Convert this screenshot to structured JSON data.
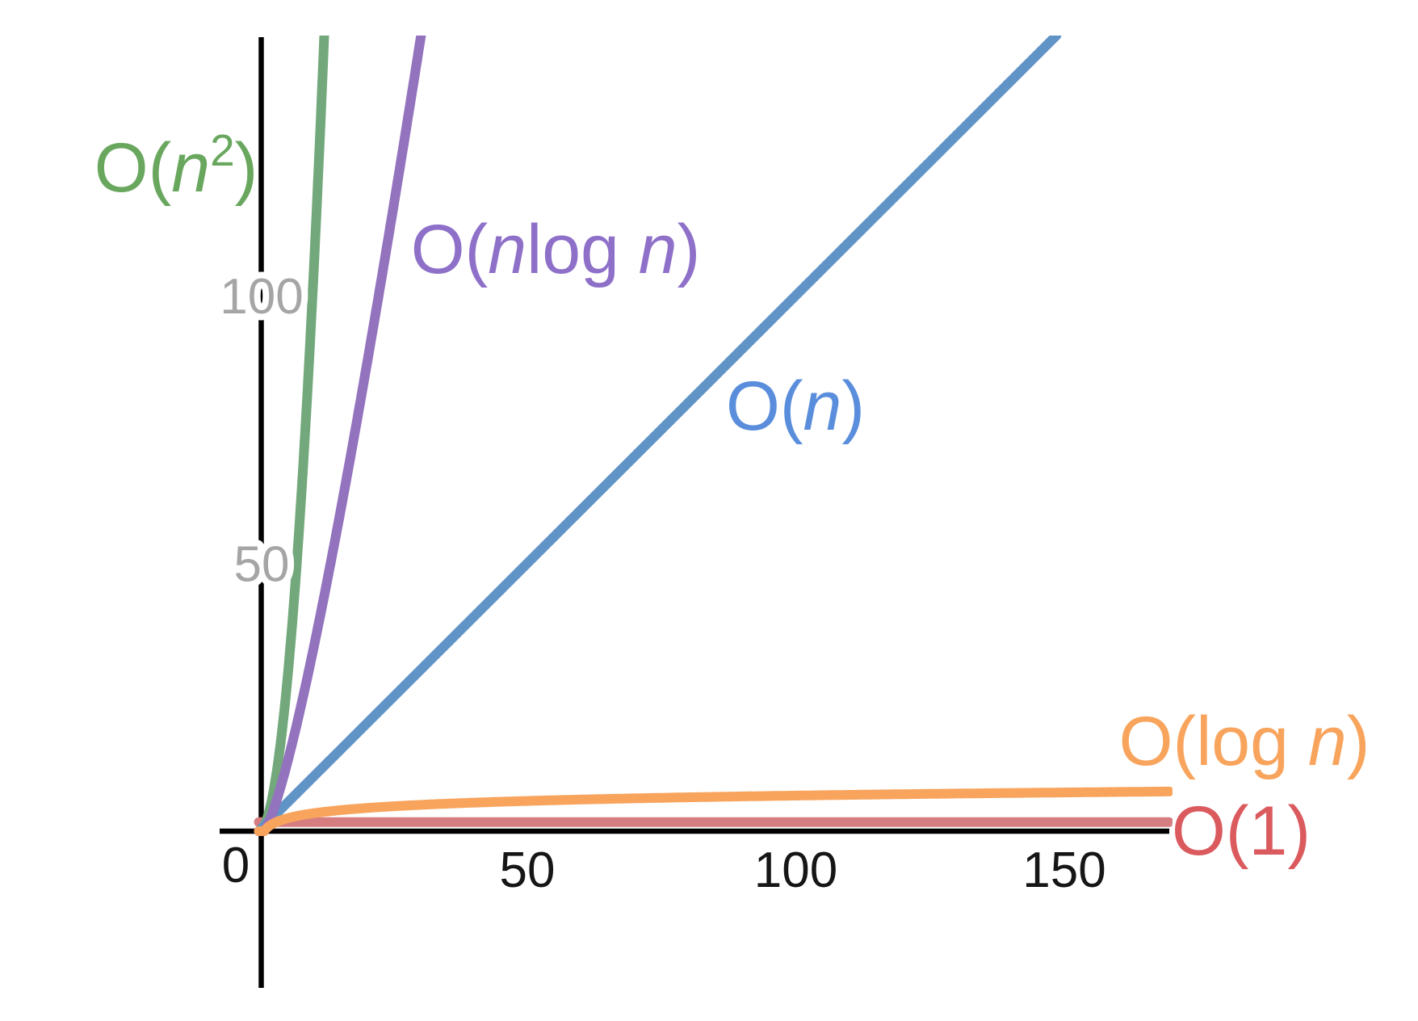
{
  "chart_data": {
    "type": "line",
    "title": "",
    "subtitle": "",
    "xlabel": "",
    "ylabel": "",
    "grid": false,
    "legend_position": "inline-curve-labels",
    "background_color": "#ffffff",
    "axis_color": "#000000",
    "x_tick_color": "#161616",
    "y_tick_color": "#a5a5a5",
    "x_range": [
      0,
      169.5
    ],
    "y_range": [
      0,
      148
    ],
    "x_ticks": [
      {
        "value": 0,
        "label": "0"
      },
      {
        "value": 50,
        "label": "50"
      },
      {
        "value": 100,
        "label": "100"
      },
      {
        "value": 150,
        "label": "150"
      }
    ],
    "y_ticks": [
      {
        "value": 50,
        "label": "50"
      },
      {
        "value": 100,
        "label": "100"
      }
    ],
    "series": [
      {
        "id": "n2",
        "label": "O(n²)",
        "formula": "n^2",
        "line_color": "#72A87B",
        "label_color": "#69A75F",
        "label_parts": [
          {
            "t": "O("
          },
          {
            "t": "n",
            "italic": true
          },
          {
            "t": "2",
            "sup": true
          },
          {
            "t": ")"
          }
        ],
        "points": {
          "x": [
            0,
            2,
            4,
            6,
            8,
            10,
            12.2
          ],
          "y": [
            0,
            4,
            16,
            36,
            64,
            100,
            148
          ]
        }
      },
      {
        "id": "nlogn",
        "label": "O(nlog n)",
        "formula": "n*log2(n)",
        "line_color": "#9372BE",
        "label_color": "#8E70C9",
        "label_parts": [
          {
            "t": "O("
          },
          {
            "t": "n",
            "italic": true
          },
          {
            "t": "log "
          },
          {
            "t": "n",
            "italic": true
          },
          {
            "t": ")"
          }
        ],
        "points": {
          "x": [
            0,
            5,
            10,
            15,
            20,
            25,
            30.2
          ],
          "y": [
            0,
            11.6,
            33.2,
            58.6,
            86.4,
            116.1,
            148
          ]
        }
      },
      {
        "id": "n",
        "label": "O(n)",
        "formula": "n",
        "line_color": "#6094C7",
        "label_color": "#5A8EDC",
        "label_parts": [
          {
            "t": "O("
          },
          {
            "t": "n",
            "italic": true
          },
          {
            "t": ")"
          }
        ],
        "points": {
          "x": [
            0,
            50,
            100,
            148
          ],
          "y": [
            0,
            50,
            100,
            148
          ]
        }
      },
      {
        "id": "logn",
        "label": "O(log n)",
        "formula": "log2(n)",
        "line_color": "#F8A45D",
        "label_color": "#F8A45D",
        "label_parts": [
          {
            "t": "O(log "
          },
          {
            "t": "n",
            "italic": true
          },
          {
            "t": ")"
          }
        ],
        "points": {
          "x": [
            1,
            2,
            4,
            8,
            16,
            32,
            64,
            128,
            169.5
          ],
          "y": [
            0,
            1,
            2,
            3,
            4,
            5,
            6,
            7,
            7.4
          ]
        }
      },
      {
        "id": "o1",
        "label": "O(1)",
        "formula": "const",
        "const_value": 1.7,
        "line_color": "#D57D80",
        "label_color": "#DA5A5E",
        "label_parts": [
          {
            "t": "O(1)"
          }
        ],
        "points": {
          "x": [
            0,
            169.5
          ],
          "y": [
            1.7,
            1.7
          ]
        }
      }
    ]
  }
}
